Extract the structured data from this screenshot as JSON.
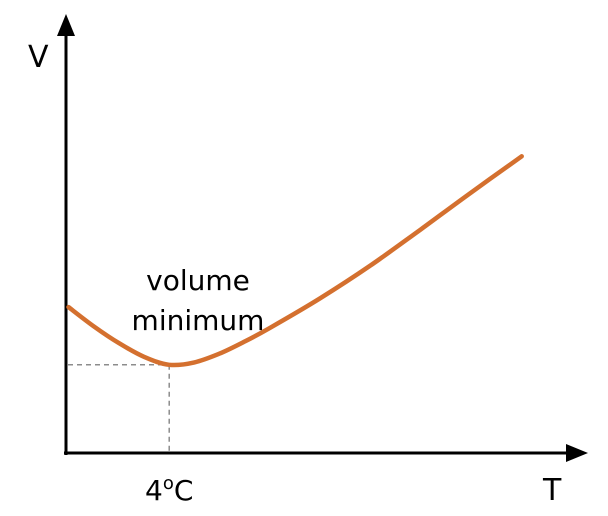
{
  "chart_data": {
    "type": "line",
    "title": "",
    "xlabel": "T",
    "ylabel": "V",
    "grid": false,
    "legend": "none",
    "x_tick": {
      "label": "4",
      "superscript": "o",
      "suffix": "C",
      "value": 4
    },
    "annotation": {
      "line1": "volume",
      "line2": "minimum"
    },
    "series": [
      {
        "color": "#d4702f",
        "x": [
          0,
          1,
          2,
          3,
          4,
          5,
          6,
          7,
          8,
          10,
          12,
          14,
          16,
          18
        ],
        "y": [
          1.72,
          1.48,
          1.27,
          1.1,
          1.0,
          1.03,
          1.14,
          1.29,
          1.46,
          1.83,
          2.24,
          2.69,
          3.15,
          3.6
        ]
      }
    ],
    "minimum": {
      "x": 4,
      "y": 1.0
    },
    "xlim": [
      -0.1,
      20
    ],
    "ylim": [
      -0.1,
      5.2
    ]
  }
}
